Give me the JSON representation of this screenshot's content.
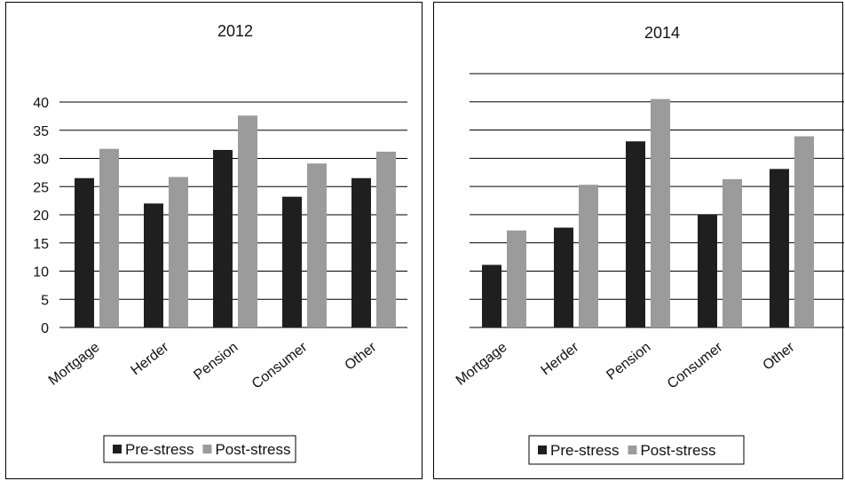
{
  "chart_data": [
    {
      "type": "bar",
      "title": "2012",
      "categories": [
        "Mortgage",
        "Herder",
        "Pension",
        "Consumer",
        "Other"
      ],
      "series": [
        {
          "name": "Pre-stress",
          "values": [
            26.5,
            22,
            31.5,
            23.2,
            26.5
          ]
        },
        {
          "name": "Post-stress",
          "values": [
            31.7,
            26.7,
            37.6,
            29.1,
            31.2
          ]
        }
      ],
      "ylim": [
        0,
        40
      ],
      "yticks": [
        "0",
        "5",
        "10",
        "15",
        "20",
        "25",
        "30",
        "35",
        "40"
      ],
      "show_ytick_labels": true,
      "grid": true,
      "legend_position": "bottom"
    },
    {
      "type": "bar",
      "title": "2014",
      "categories": [
        "Mortgage",
        "Herder",
        "Pension",
        "Consumer",
        "Other"
      ],
      "series": [
        {
          "name": "Pre-stress",
          "values": [
            11.1,
            17.7,
            33.0,
            20.0,
            28.1
          ]
        },
        {
          "name": "Post-stress",
          "values": [
            17.2,
            25.3,
            40.5,
            26.3,
            33.9
          ]
        }
      ],
      "ylim": [
        0,
        45
      ],
      "show_ytick_labels": false,
      "grid": true,
      "legend_position": "bottom"
    }
  ],
  "colors": {
    "Pre-stress": "#1f1f1f",
    "Post-stress": "#9b9b9b",
    "grid": "#000000"
  }
}
